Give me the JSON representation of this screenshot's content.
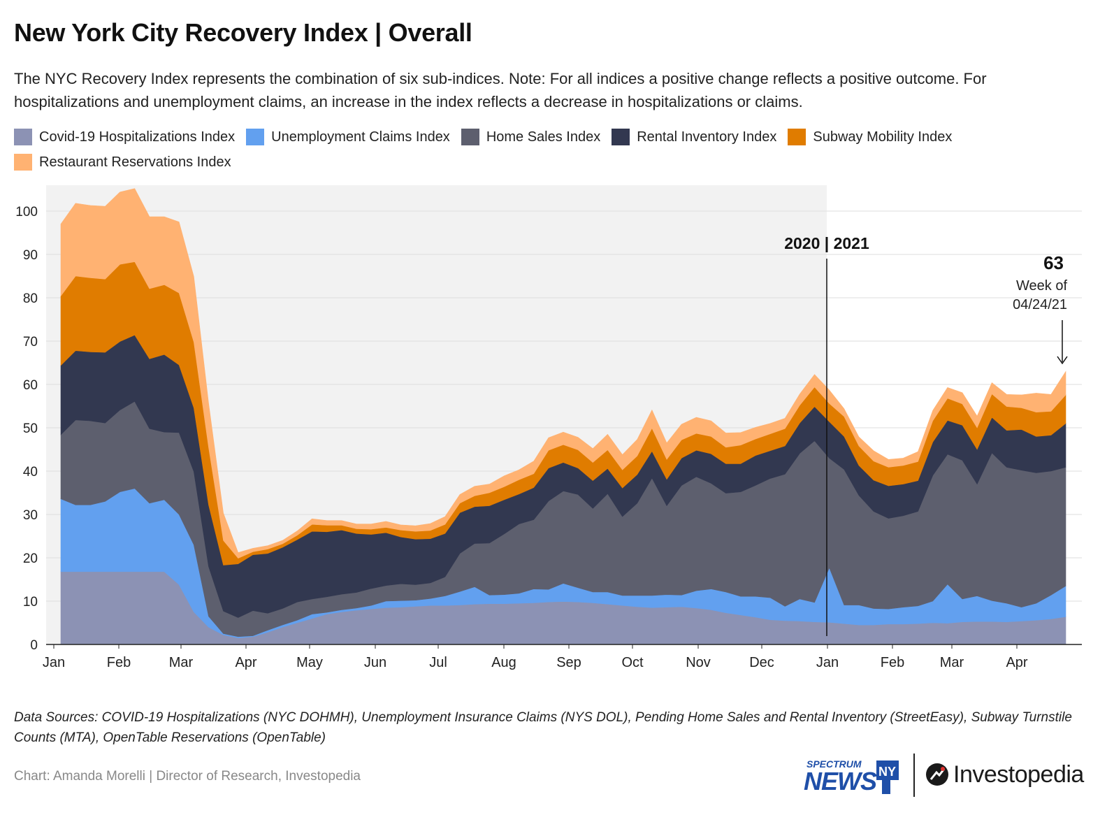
{
  "title": "New York City Recovery Index | Overall",
  "subtitle": "The NYC Recovery Index represents the combination of six sub-indices. Note: For all indices a positive change reflects a positive outcome. For hospitalizations and unemployment claims, an increase in the index reflects a decrease in hospitalizations or claims.",
  "sources": "Data Sources: COVID-19 Hospitalizations (NYC DOHMH), Unemployment Insurance Claims (NYS DOL), Pending Home Sales and Rental Inventory (StreetEasy), Subway Turnstile Counts (MTA), OpenTable Reservations (OpenTable)",
  "credit": "Chart: Amanda Morelli | Director of Research, Investopedia",
  "logos": {
    "spectrum_top": "SPECTRUM",
    "spectrum_main": "NEWS",
    "spectrum_badge": "NY",
    "investopedia": "Investopedia"
  },
  "chart_data": {
    "type": "area",
    "stacked": true,
    "y_ticks": [
      0,
      10,
      20,
      30,
      40,
      50,
      60,
      70,
      80,
      90,
      100
    ],
    "ylim": [
      0,
      106
    ],
    "x_ticks": [
      "Jan",
      "Feb",
      "Mar",
      "Apr",
      "May",
      "Jun",
      "Jul",
      "Aug",
      "Sep",
      "Oct",
      "Nov",
      "Dec",
      "Jan",
      "Feb",
      "Mar",
      "Apr"
    ],
    "year_divider_label": "2020 | 2021",
    "shaded_period": "2020",
    "grid": "horizontal",
    "legend": "top",
    "annotation": {
      "value": "63",
      "line1": "Week of",
      "line2": "04/24/21"
    },
    "series": [
      {
        "name": "Covid-19 Hospitalizations Index",
        "color": "#8c92b4",
        "values": [
          16.8,
          16.8,
          16.8,
          16.8,
          16.8,
          16.8,
          16.8,
          16.8,
          13.8,
          7.5,
          4,
          2.2,
          1.5,
          1.8,
          2.8,
          4,
          5,
          6,
          7,
          7.5,
          7.9,
          8.2,
          8.5,
          8.6,
          8.8,
          9,
          9,
          9.1,
          9.3,
          9.4,
          9.4,
          9.5,
          9.6,
          9.8,
          9.9,
          9.8,
          9.6,
          9.3,
          9,
          8.7,
          8.5,
          8.6,
          8.7,
          8.4,
          8,
          7.3,
          6.8,
          6.3,
          5.7,
          5.5,
          5.4,
          5.2,
          5.1,
          4.8,
          4.5,
          4.5,
          4.7,
          4.7,
          4.8,
          5,
          4.9,
          5.2,
          5.3,
          5.3,
          5.2,
          5.4,
          5.6,
          5.9,
          6.4
        ]
      },
      {
        "name": "Unemployment Claims Index",
        "color": "#62a0ef",
        "values": [
          16.8,
          15.4,
          15.4,
          16.2,
          18.4,
          19.2,
          15.8,
          16.6,
          16.2,
          15.5,
          2.5,
          0.3,
          0.3,
          0.2,
          0.5,
          0.5,
          0.6,
          1,
          0.4,
          0.5,
          0.5,
          0.8,
          1.5,
          1.5,
          1.4,
          1.6,
          2.2,
          3.1,
          4,
          2,
          2.1,
          2.3,
          3.2,
          2.9,
          4.2,
          3.3,
          2.5,
          2.8,
          2.3,
          2.6,
          2.8,
          2.9,
          2.7,
          4,
          4.8,
          4.8,
          4.3,
          4.8,
          5.1,
          3.3,
          5.1,
          4.5,
          12.6,
          4.3,
          4.6,
          3.8,
          3.5,
          3.9,
          4.1,
          5,
          9,
          5.3,
          5.9,
          4.8,
          4.3,
          3.2,
          3.9,
          5.5,
          7.1
        ]
      },
      {
        "name": "Home Sales Index",
        "color": "#5d5f6e",
        "values": [
          14.8,
          19.6,
          19.4,
          18.1,
          18.9,
          20.1,
          17.2,
          15.6,
          18.9,
          16.9,
          11.5,
          5.2,
          4.4,
          5.8,
          3.9,
          3.8,
          4.2,
          3.5,
          3.6,
          3.6,
          3.6,
          3.9,
          3.6,
          3.9,
          3.6,
          3.6,
          4.4,
          8.8,
          10,
          12,
          14,
          16,
          16,
          20.4,
          21.3,
          21.5,
          19.3,
          22.7,
          18.2,
          21.3,
          27.1,
          20.5,
          25.3,
          26.3,
          24.4,
          22.8,
          24.1,
          25.6,
          27.5,
          30.5,
          33.6,
          37.3,
          25.3,
          31.3,
          25.3,
          22.4,
          20.9,
          21.1,
          21.8,
          29,
          30,
          32,
          25.8,
          34.1,
          31.4,
          31.6,
          30.1,
          28.6,
          27.4
        ]
      },
      {
        "name": "Rental Inventory Index",
        "color": "#323850",
        "values": [
          16,
          16,
          15.9,
          16.3,
          15.8,
          15.3,
          16.1,
          17.9,
          15.6,
          14.7,
          14.2,
          10.6,
          12.4,
          12.9,
          13.8,
          14.1,
          14.4,
          15.6,
          15,
          14.8,
          13.6,
          12.5,
          12.2,
          10.8,
          10.5,
          10.2,
          10,
          9.4,
          8.5,
          8.6,
          7.9,
          6.9,
          7.4,
          7.6,
          6.6,
          6.1,
          6.4,
          5.8,
          6.6,
          6.6,
          6.2,
          6.1,
          6.3,
          6.1,
          6.8,
          6.8,
          6.5,
          6.9,
          6.4,
          6.5,
          7,
          7.9,
          8.4,
          7.6,
          6.9,
          7.2,
          7.5,
          7.3,
          7.1,
          7.7,
          7.8,
          8.1,
          8,
          8.2,
          8.5,
          9.4,
          8.4,
          8.3,
          10.1
        ]
      },
      {
        "name": "Subway Mobility Index",
        "color": "#e07c00",
        "values": [
          16,
          17.2,
          17.1,
          16.9,
          17.8,
          16.9,
          16.2,
          16.1,
          16.6,
          15.2,
          13.3,
          5.7,
          1.3,
          0.7,
          1,
          0.8,
          1,
          1.6,
          1.5,
          1.1,
          1.1,
          1.2,
          1.2,
          1.6,
          1.8,
          1.9,
          2.1,
          2.2,
          2.5,
          3,
          3,
          3.3,
          3.2,
          4.1,
          4.1,
          4.2,
          4.2,
          4.3,
          4.2,
          4.3,
          5.3,
          4.6,
          4.2,
          3.9,
          4,
          3.8,
          4.3,
          3.8,
          3.9,
          4,
          4.1,
          4.5,
          4.2,
          4.6,
          4.5,
          4.4,
          4.3,
          4.3,
          4.4,
          4.9,
          5.1,
          4.9,
          5,
          5.4,
          5.5,
          5,
          5.6,
          5.5,
          6.6
        ]
      },
      {
        "name": "Restaurant Reservations Index",
        "color": "#ffb272",
        "values": [
          16.6,
          16.8,
          16.7,
          16.8,
          16.7,
          16.9,
          16.6,
          15.7,
          16.4,
          15.1,
          10.2,
          6.3,
          1.3,
          0.8,
          0.8,
          0.8,
          1,
          1.3,
          1.1,
          1.1,
          1.1,
          1.2,
          1.4,
          1.2,
          1.3,
          1.6,
          1.8,
          2,
          2.2,
          2,
          2.5,
          2.3,
          2.9,
          2.9,
          2.9,
          2.9,
          3.2,
          3.6,
          3.5,
          3.8,
          4.2,
          3.8,
          3.6,
          3.7,
          3.6,
          3.3,
          2.9,
          2.7,
          2.4,
          2.4,
          2.6,
          2.9,
          3.1,
          1.8,
          2.1,
          2.4,
          1.8,
          1.7,
          2.3,
          2.4,
          2.5,
          2.6,
          2.7,
          2.6,
          2.8,
          3,
          4.4,
          3.9,
          5.4
        ]
      }
    ]
  }
}
